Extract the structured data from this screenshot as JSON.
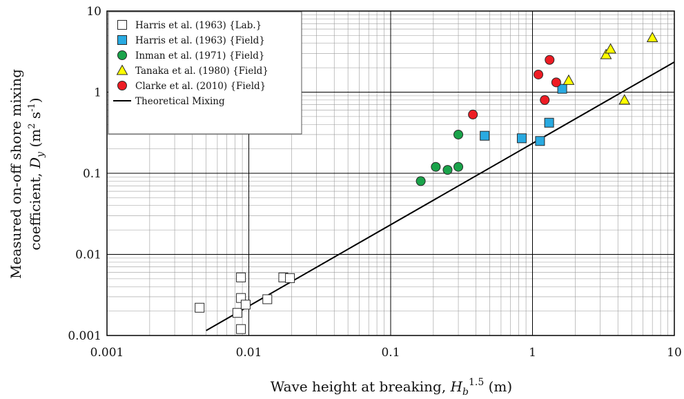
{
  "chart_data": {
    "type": "scatter",
    "x_scale": "log",
    "y_scale": "log",
    "xlim": [
      0.001,
      10
    ],
    "ylim": [
      0.001,
      10
    ],
    "grid": true,
    "legend_position": "top-left",
    "xlabel": {
      "main": "Wave height at breaking, ",
      "var": "H",
      "sub": "b",
      "sup": "1.5",
      "unit": " (m)"
    },
    "ylabel": {
      "line1": "Measured on-off shore mixing",
      "line2_main": "coefficient, ",
      "var": "D",
      "sub": "y",
      "unit_open": " (m",
      "unit_sup1": "2",
      "unit_mid": " s",
      "unit_sup2": "-1",
      "unit_close": ")"
    },
    "x_ticks": [
      {
        "value": 0.001,
        "label": "0.001"
      },
      {
        "value": 0.01,
        "label": "0.01"
      },
      {
        "value": 0.1,
        "label": "0.1"
      },
      {
        "value": 1,
        "label": "1"
      },
      {
        "value": 10,
        "label": "10"
      }
    ],
    "y_ticks": [
      {
        "value": 0.001,
        "label": "0.001"
      },
      {
        "value": 0.01,
        "label": "0.01"
      },
      {
        "value": 0.1,
        "label": "0.1"
      },
      {
        "value": 1,
        "label": "1"
      },
      {
        "value": 10,
        "label": "10"
      }
    ],
    "series": [
      {
        "name": "Harris et al. (1963) {Lab.}",
        "marker": "square",
        "color": "#ffffff",
        "points": [
          {
            "x": 0.0045,
            "y": 0.0022
          },
          {
            "x": 0.0083,
            "y": 0.0019
          },
          {
            "x": 0.0088,
            "y": 0.0052
          },
          {
            "x": 0.0088,
            "y": 0.0029
          },
          {
            "x": 0.0088,
            "y": 0.0012
          },
          {
            "x": 0.0095,
            "y": 0.0024
          },
          {
            "x": 0.0135,
            "y": 0.0028
          },
          {
            "x": 0.0175,
            "y": 0.0052
          },
          {
            "x": 0.0195,
            "y": 0.0051
          }
        ]
      },
      {
        "name": "Harris et al. (1963) {Field}",
        "marker": "square",
        "color": "#29aae1",
        "points": [
          {
            "x": 0.46,
            "y": 0.29
          },
          {
            "x": 0.84,
            "y": 0.27
          },
          {
            "x": 1.13,
            "y": 0.25
          },
          {
            "x": 1.31,
            "y": 0.42
          },
          {
            "x": 1.62,
            "y": 1.1
          }
        ]
      },
      {
        "name": "Inman et al. (1971) {Field}",
        "marker": "circle",
        "color": "#1aa34a",
        "points": [
          {
            "x": 0.163,
            "y": 0.08
          },
          {
            "x": 0.208,
            "y": 0.12
          },
          {
            "x": 0.252,
            "y": 0.11
          },
          {
            "x": 0.3,
            "y": 0.12
          },
          {
            "x": 0.3,
            "y": 0.3
          }
        ]
      },
      {
        "name": "Tanaka et al. (1980) {Field}",
        "marker": "triangle",
        "color": "#ffff00",
        "points": [
          {
            "x": 1.8,
            "y": 1.4
          },
          {
            "x": 3.3,
            "y": 2.9
          },
          {
            "x": 3.55,
            "y": 3.4
          },
          {
            "x": 4.45,
            "y": 0.8
          },
          {
            "x": 7.0,
            "y": 4.7
          }
        ]
      },
      {
        "name": "Clarke et al. (2010) {Field}",
        "marker": "circle",
        "color": "#ee1c24",
        "points": [
          {
            "x": 0.38,
            "y": 0.53
          },
          {
            "x": 1.1,
            "y": 1.65
          },
          {
            "x": 1.22,
            "y": 0.8
          },
          {
            "x": 1.32,
            "y": 2.5
          },
          {
            "x": 1.47,
            "y": 1.32
          }
        ]
      }
    ],
    "lines": [
      {
        "name": "Theoretical Mixing",
        "color": "#000000",
        "points": [
          {
            "x": 0.005,
            "y": 0.00115
          },
          {
            "x": 10,
            "y": 2.35
          }
        ]
      }
    ]
  }
}
